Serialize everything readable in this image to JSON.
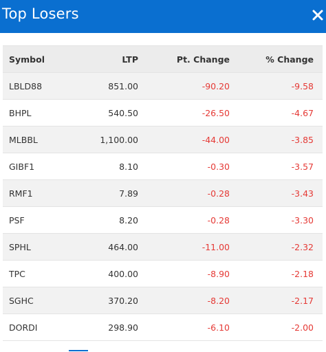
{
  "header": {
    "title": "Top Losers",
    "close_icon": "close-icon",
    "background": "#0a6fd0"
  },
  "table": {
    "columns": [
      "Symbol",
      "LTP",
      "Pt. Change",
      "% Change"
    ],
    "rows": [
      {
        "symbol": "LBLD88",
        "ltp": "851.00",
        "pt_change": "-90.20",
        "pct_change": "-9.58"
      },
      {
        "symbol": "BHPL",
        "ltp": "540.50",
        "pt_change": "-26.50",
        "pct_change": "-4.67"
      },
      {
        "symbol": "MLBBL",
        "ltp": "1,100.00",
        "pt_change": "-44.00",
        "pct_change": "-3.85"
      },
      {
        "symbol": "GIBF1",
        "ltp": "8.10",
        "pt_change": "-0.30",
        "pct_change": "-3.57"
      },
      {
        "symbol": "RMF1",
        "ltp": "7.89",
        "pt_change": "-0.28",
        "pct_change": "-3.43"
      },
      {
        "symbol": "PSF",
        "ltp": "8.20",
        "pt_change": "-0.28",
        "pct_change": "-3.30"
      },
      {
        "symbol": "SPHL",
        "ltp": "464.00",
        "pt_change": "-11.00",
        "pct_change": "-2.32"
      },
      {
        "symbol": "TPC",
        "ltp": "400.00",
        "pt_change": "-8.90",
        "pct_change": "-2.18"
      },
      {
        "symbol": "SGHC",
        "ltp": "370.20",
        "pt_change": "-8.20",
        "pct_change": "-2.17"
      },
      {
        "symbol": "DORDI",
        "ltp": "298.90",
        "pt_change": "-6.10",
        "pct_change": "-2.00"
      }
    ],
    "negative_color": "#e53935"
  }
}
